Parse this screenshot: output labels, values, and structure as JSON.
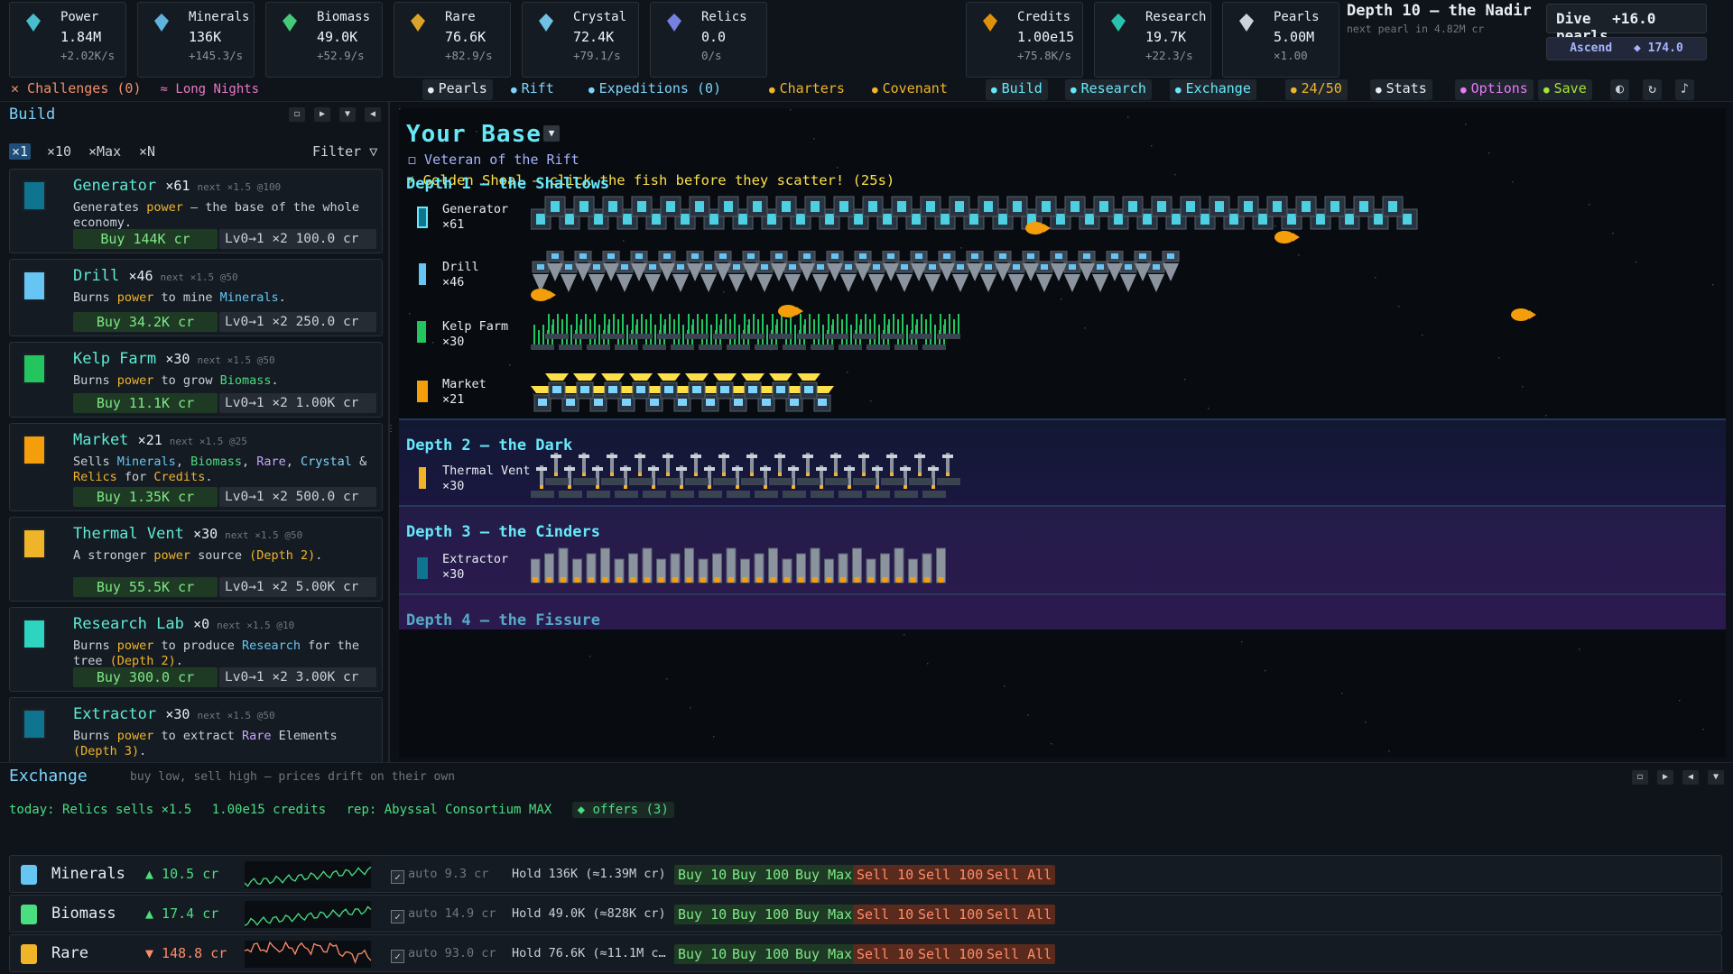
{
  "resources": [
    {
      "name": "Power",
      "value": "1.84M",
      "rate": "+2.02K/s",
      "icon": "lightning-icon",
      "color": "#4dd0e1"
    },
    {
      "name": "Minerals",
      "value": "136K",
      "rate": "+145.3/s",
      "icon": "mineral-icon",
      "color": "#67c5f3"
    },
    {
      "name": "Biomass",
      "value": "49.0K",
      "rate": "+52.9/s",
      "icon": "kelp-icon",
      "color": "#4ade80"
    },
    {
      "name": "Rare",
      "value": "76.6K",
      "rate": "+82.9/s",
      "icon": "orb-icon",
      "color": "#f0b429"
    },
    {
      "name": "Crystal",
      "value": "72.4K",
      "rate": "+79.1/s",
      "icon": "crystal-icon",
      "color": "#7dd3fc"
    },
    {
      "name": "Relics",
      "value": "0.0",
      "rate": "0/s",
      "icon": "relic-icon",
      "color": "#818cf8"
    }
  ],
  "currencies": [
    {
      "name": "Credits",
      "value": "1.00e15",
      "rate": "+75.8K/s",
      "icon": "coin-icon",
      "color": "#f59e0b"
    },
    {
      "name": "Research",
      "value": "19.7K",
      "rate": "+22.3/s",
      "icon": "flask-icon",
      "color": "#2dd4bf"
    },
    {
      "name": "Pearls",
      "value": "5.00M",
      "rate": "×1.00",
      "icon": "pearl-icon",
      "color": "#e2e8f0"
    }
  ],
  "depth": {
    "title": "Depth 10 — the Nadir",
    "sub": "next pearl in 4.82M cr"
  },
  "dive": {
    "label": "Dive",
    "gain": "+16.0 pearls"
  },
  "ascend": {
    "label": "Ascend",
    "value": "◆ 174.0"
  },
  "nav": {
    "challenges": "✕ Challenges (0)",
    "long_nights": "≈ Long Nights",
    "items": [
      {
        "label": "Pearls",
        "icon": "pearl-icon",
        "color": "#e6edf3",
        "bg": "#1f252d"
      },
      {
        "label": "Rift",
        "icon": "rift-icon",
        "color": "#7dd3fc",
        "bg": ""
      },
      {
        "label": "Expeditions (0)",
        "icon": "submarine-icon",
        "color": "#7dd3fc",
        "bg": ""
      },
      {
        "label": "Charters",
        "icon": "charter-icon",
        "color": "#f0b429",
        "bg": ""
      },
      {
        "label": "Covenant",
        "icon": "covenant-icon",
        "color": "#f0b429",
        "bg": ""
      },
      {
        "label": "Build",
        "icon": "hammer-icon",
        "color": "#67e8f9",
        "bg": "#1f252d"
      },
      {
        "label": "Research",
        "icon": "flask-icon",
        "color": "#67e8f9",
        "bg": "#1f252d"
      },
      {
        "label": "Exchange",
        "icon": "exchange-icon",
        "color": "#67e8f9",
        "bg": "#1f252d"
      },
      {
        "label": "24/50",
        "icon": "trophy-icon",
        "color": "#f0b429",
        "bg": "#1f252d"
      },
      {
        "label": "Stats",
        "icon": "chart-icon",
        "color": "#e6edf3",
        "bg": "#1f252d"
      },
      {
        "label": "Options",
        "icon": "gear-icon",
        "color": "#e879f9",
        "bg": "#1f252d"
      },
      {
        "label": "Save",
        "icon": "save-icon",
        "color": "#a3e635",
        "bg": "#1f252d"
      }
    ]
  },
  "build": {
    "title": "Build",
    "multipliers": [
      "×1",
      "×10",
      "×Max",
      "×N"
    ],
    "filter": "Filter ▽",
    "cards": [
      {
        "name": "Generator",
        "count": "×61",
        "next": "next ×1.5 @100",
        "desc_html": [
          "Generates ",
          "power",
          " — the base of the whole economy."
        ],
        "buy": "Buy 144K cr",
        "lv": "Lv0→1 ×2  100.0 cr"
      },
      {
        "name": "Drill",
        "count": "×46",
        "next": "next ×1.5 @50",
        "desc_html": [
          "Burns ",
          "power",
          " to mine ",
          "Minerals",
          "."
        ],
        "buy": "Buy 34.2K cr",
        "lv": "Lv0→1 ×2  250.0 cr"
      },
      {
        "name": "Kelp Farm",
        "count": "×30",
        "next": "next ×1.5 @50",
        "desc_html": [
          "Burns ",
          "power",
          " to grow ",
          "Biomass",
          "."
        ],
        "buy": "Buy 11.1K cr",
        "lv": "Lv0→1 ×2  1.00K cr"
      },
      {
        "name": "Market",
        "count": "×21",
        "next": "next ×1.5 @25",
        "desc_html": [
          "Sells ",
          "Minerals",
          ", ",
          "Biomass",
          ", ",
          "Rare",
          ", ",
          "Crystal",
          " & ",
          "Relics",
          " for ",
          "Credits",
          "."
        ],
        "buy": "Buy 1.35K cr",
        "lv": "Lv0→1 ×2  500.0 cr"
      },
      {
        "name": "Thermal Vent",
        "count": "×30",
        "next": "next ×1.5 @50",
        "desc_html": [
          "A stronger ",
          "power",
          " source ",
          "(Depth 2)",
          "."
        ],
        "buy": "Buy 55.5K cr",
        "lv": "Lv0→1 ×2  5.00K cr"
      },
      {
        "name": "Research Lab",
        "count": "×0",
        "next": "next ×1.5 @10",
        "desc_html": [
          "Burns ",
          "power",
          " to produce ",
          "Research",
          " for the tree ",
          "(Depth 2)",
          "."
        ],
        "buy": "Buy 300.0 cr",
        "lv": "Lv0→1 ×2  3.00K cr"
      },
      {
        "name": "Extractor",
        "count": "×30",
        "next": "next ×1.5 @50",
        "desc_html": [
          "Burns ",
          "power",
          " to extract ",
          "Rare",
          " Elements ",
          "(Depth 3)",
          "."
        ],
        "buy": "",
        "lv": ""
      }
    ]
  },
  "base": {
    "title": "Your Base",
    "veteran": "◻ Veteran of the Rift",
    "event": "⚡ Golden Shoal — click the fish before they scatter! (25s)",
    "depths": [
      {
        "title": "Depth 1 – the Shallows",
        "buildings": [
          {
            "name": "Generator",
            "count": "×61"
          },
          {
            "name": "Drill",
            "count": "×46"
          },
          {
            "name": "Kelp Farm",
            "count": "×30"
          },
          {
            "name": "Market",
            "count": "×21"
          }
        ]
      },
      {
        "title": "Depth 2 – the Dark",
        "buildings": [
          {
            "name": "Thermal Vent",
            "count": "×30"
          }
        ]
      },
      {
        "title": "Depth 3 – the Cinders",
        "buildings": [
          {
            "name": "Extractor",
            "count": "×30"
          }
        ]
      },
      {
        "title": "Depth 4 – the Fissure",
        "buildings": []
      }
    ]
  },
  "exchange": {
    "title": "Exchange",
    "subtitle": "buy low, sell high — prices drift on their own",
    "today": "today: Relics sells ×1.5",
    "credits": "1.00e15 credits",
    "rep": "rep: Abyssal Consortium MAX",
    "offers": "◆ offers (3)",
    "rows": [
      {
        "name": "Minerals",
        "price": "▲ 10.5 cr",
        "trend": "up",
        "auto": "auto 9.3 cr",
        "hold": "Hold 136K  (≈1.39M cr)",
        "standing": "standing order",
        "icon": "mineral-icon"
      },
      {
        "name": "Biomass",
        "price": "▲ 17.4 cr",
        "trend": "up",
        "auto": "auto 14.9 cr",
        "hold": "Hold 49.0K  (≈828K cr)",
        "standing": "standing order",
        "icon": "kelp-icon"
      },
      {
        "name": "Rare",
        "price": "▼ 148.8 cr",
        "trend": "down",
        "auto": "auto 93.0 cr",
        "hold": "Hold 76.6K  (≈11.1M c…",
        "standing": "standing order",
        "icon": "orb-icon"
      }
    ],
    "buttons": [
      "Buy 10",
      "Buy 100",
      "Buy Max",
      "Sell 10",
      "Sell 100",
      "Sell All"
    ]
  }
}
